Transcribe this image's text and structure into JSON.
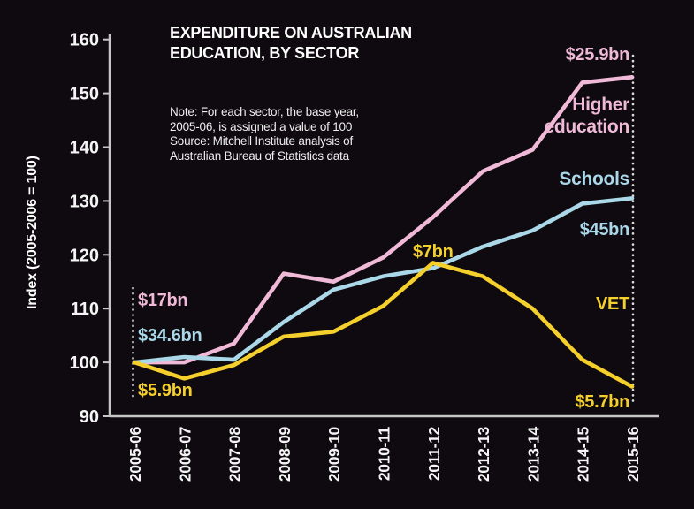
{
  "title": {
    "text": "EXPENDITURE ON AUSTRALIAN\nEDUCATION, BY SECTOR"
  },
  "note": {
    "text": "Note: For each sector, the base year,\n2005-06, is assigned a value of 100\nSource: Mitchell Institute analysis of\nAustralian Bureau of Statistics data"
  },
  "colors": {
    "background": "#0e0a0f",
    "higher_education": "#f0b9d7",
    "schools": "#aad8e8",
    "vet": "#f5d02d",
    "axis": "#c6c6c6",
    "tick_text": "#f5f5f5",
    "dotted_line": "#dcdcdc"
  },
  "annotations": {
    "he_start": "$17bn",
    "schools_start": "$34.6bn",
    "vet_start": "$5.9bn",
    "vet_peak": "$7bn",
    "he_end": "$25.9bn",
    "schools_end": "$45bn",
    "vet_end": "$5.7bn",
    "he_label": "Higher\neducation",
    "schools_label": "Schools",
    "vet_label": "VET"
  },
  "chart_data": {
    "type": "line",
    "title": "EXPENDITURE ON AUSTRALIAN EDUCATION, BY SECTOR",
    "xlabel": "",
    "ylabel": "Index (2005-2006 = 100)",
    "ylim": [
      90,
      160
    ],
    "ytick_step": 10,
    "grid": false,
    "legend_position": "inline-labels",
    "categories": [
      "2005-06",
      "2006-07",
      "2007-08",
      "2008-09",
      "2009-10",
      "2010-11",
      "2011-12",
      "2012-13",
      "2013-14",
      "2014-15",
      "2015-16"
    ],
    "series": [
      {
        "name": "Higher education",
        "color": "#f0b9d7",
        "start_value_label": "$17bn",
        "end_value_label": "$25.9bn",
        "values": [
          100,
          100,
          103.5,
          116.5,
          115,
          119.5,
          127,
          135.5,
          139.5,
          152,
          153
        ]
      },
      {
        "name": "Schools",
        "color": "#aad8e8",
        "start_value_label": "$34.6bn",
        "end_value_label": "$45bn",
        "values": [
          100,
          101,
          100.5,
          107.5,
          113.5,
          116,
          117.5,
          121.5,
          124.5,
          129.5,
          130.5
        ]
      },
      {
        "name": "VET",
        "color": "#f5d02d",
        "start_value_label": "$5.9bn",
        "end_value_label": "$5.7bn",
        "peak_value_label": "$7bn",
        "values": [
          100,
          97,
          99.5,
          104.8,
          105.7,
          110.5,
          118.5,
          116,
          110,
          100.5,
          95.5
        ]
      }
    ]
  }
}
